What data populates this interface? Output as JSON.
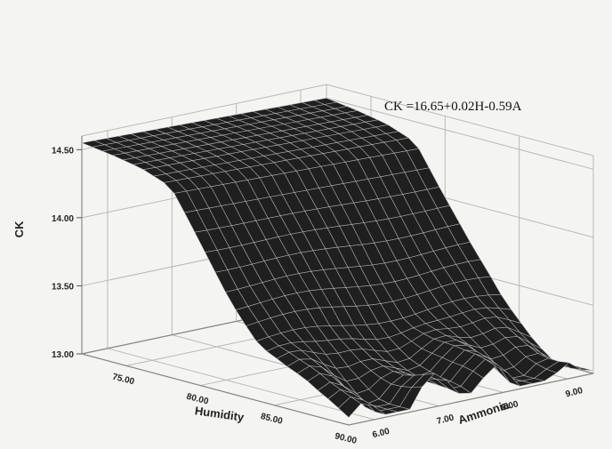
{
  "chart_data": {
    "type": "surface",
    "equation": "CK =16.65+0.02H-0.59A",
    "xlabel": "Humidity",
    "ylabel": "Ammonia",
    "zlabel": "CK",
    "x_ticks": [
      "75.00",
      "80.00",
      "85.00",
      "90.00"
    ],
    "y_ticks": [
      "6.00",
      "7.00",
      "8.00",
      "9.00"
    ],
    "z_ticks": [
      "13.00",
      "13.50",
      "14.00",
      "14.50"
    ],
    "xlim": [
      72,
      90
    ],
    "ylim": [
      5.6,
      9.4
    ],
    "zlim": [
      13.0,
      14.6
    ],
    "grid": true,
    "surface_profile": {
      "x": [
        72,
        74,
        76,
        78,
        80,
        82,
        84,
        86,
        88,
        90
      ],
      "z": [
        14.55,
        14.52,
        14.48,
        14.4,
        14.05,
        13.7,
        13.4,
        13.25,
        13.15,
        13.1
      ]
    },
    "colors": {
      "surface": "#1f1f1f",
      "mesh": "#c9c9c9",
      "grid": "#b9b9b9"
    }
  }
}
